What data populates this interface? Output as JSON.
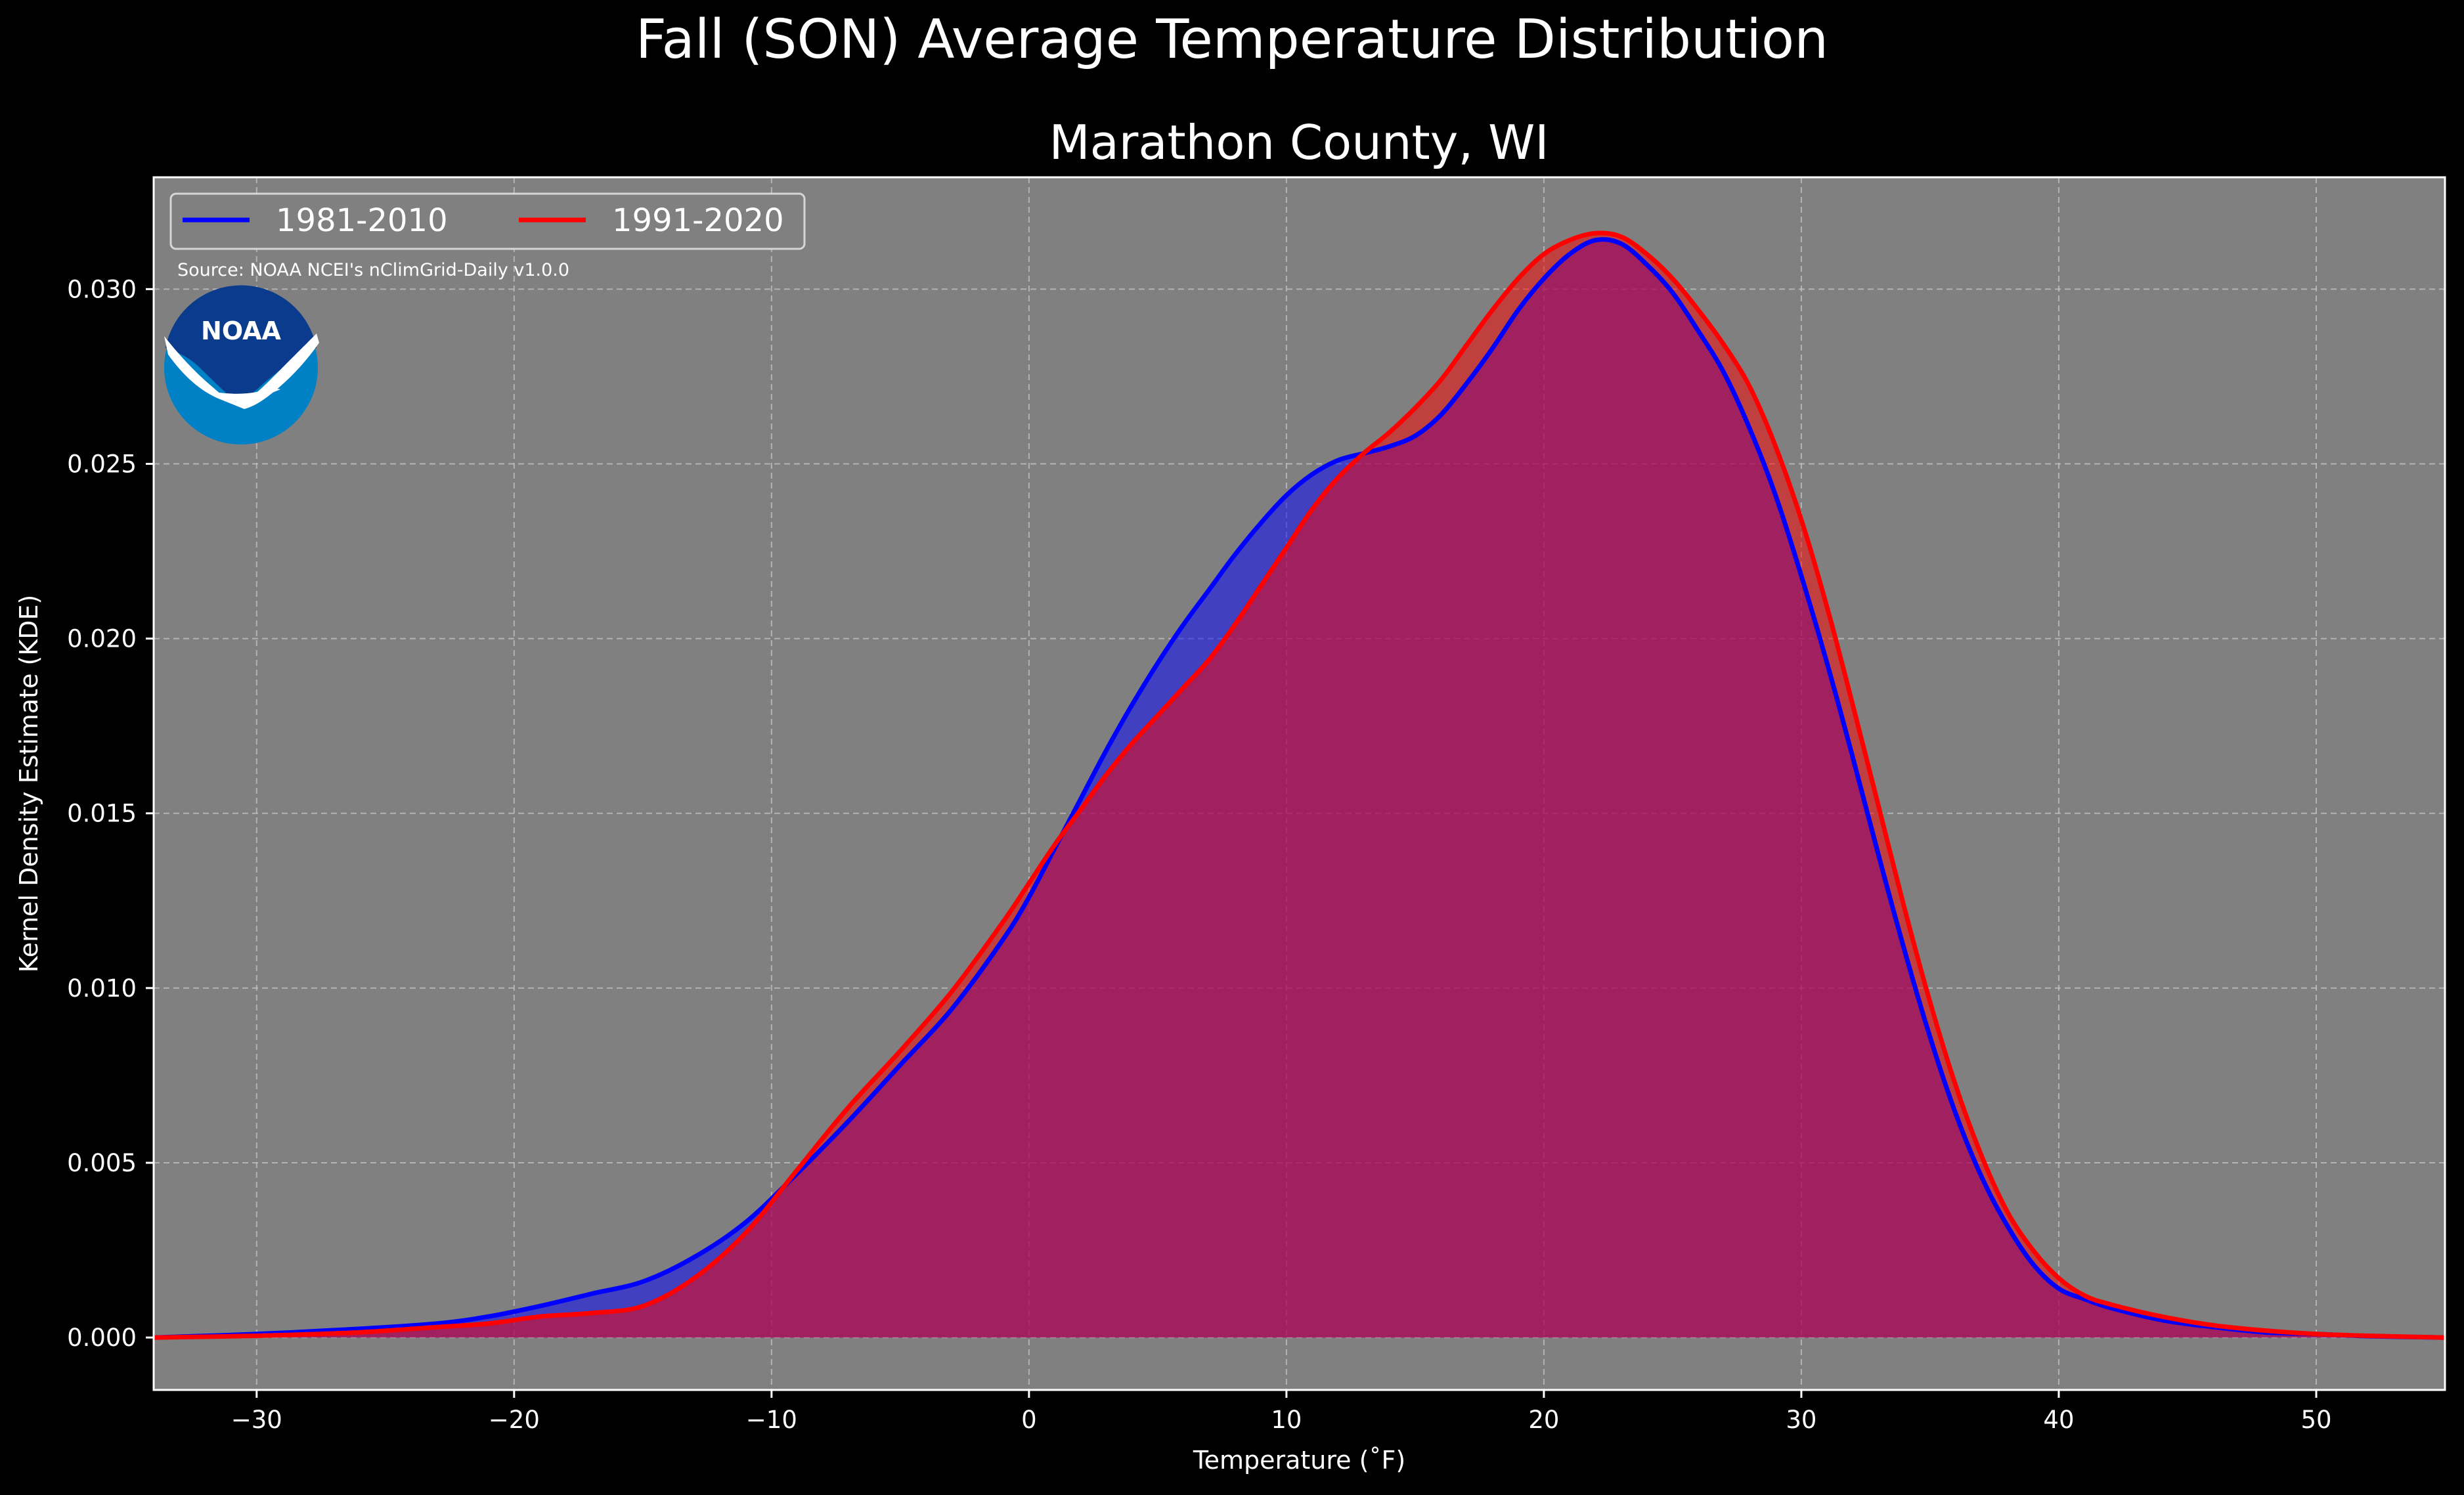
{
  "chart_data": {
    "type": "area",
    "title": "Fall (SON) Average Temperature Distribution",
    "subtitle": "Marathon County, WI",
    "xlabel": "Temperature (˚F)",
    "ylabel": "Kernel Density Estimate (KDE)",
    "xlim": [
      -34,
      55
    ],
    "ylim": [
      -0.0015,
      0.0332
    ],
    "xticks": [
      -30,
      -20,
      -10,
      0,
      10,
      20,
      30,
      40,
      50
    ],
    "xtick_labels": [
      "−30",
      "−20",
      "−10",
      "0",
      "10",
      "20",
      "30",
      "40",
      "50"
    ],
    "yticks": [
      0.0,
      0.005,
      0.01,
      0.015,
      0.02,
      0.025,
      0.03
    ],
    "ytick_labels": [
      "0.000",
      "0.005",
      "0.010",
      "0.015",
      "0.020",
      "0.025",
      "0.030"
    ],
    "grid": true,
    "legend_position": "top-left",
    "annotation": "Source: NOAA NCEI's nClimGrid-Daily v1.0.0",
    "logo": {
      "text": "NOAA",
      "outer_color": "#0081c6",
      "inner_color": "#0a3b8c"
    },
    "colors": {
      "figure_bg": "#000000",
      "axes_bg": "#808080"
    },
    "series": [
      {
        "name": "1981-2010",
        "color": "#0000ff",
        "fill": "#0000ff",
        "x": [
          -34,
          -30,
          -26,
          -23,
          -21,
          -19,
          -17,
          -15,
          -13,
          -11,
          -9,
          -7,
          -5,
          -3,
          -1,
          0,
          1,
          2,
          3,
          4,
          5,
          6,
          7,
          8,
          9,
          10,
          11,
          12,
          13,
          14,
          15,
          16,
          17,
          18,
          19,
          20,
          21,
          22,
          23,
          24,
          25,
          26,
          27,
          28,
          29,
          30,
          31,
          32,
          33,
          34,
          35,
          36,
          37,
          38,
          39,
          40,
          41,
          42,
          44,
          46,
          48,
          50,
          52,
          55
        ],
        "y": [
          0.0,
          0.0001,
          0.00025,
          0.0004,
          0.0006,
          0.0009,
          0.00125,
          0.0016,
          0.0023,
          0.0033,
          0.0047,
          0.0062,
          0.0078,
          0.0094,
          0.0114,
          0.0126,
          0.014,
          0.0154,
          0.0168,
          0.0181,
          0.0193,
          0.0204,
          0.0214,
          0.0224,
          0.0233,
          0.0241,
          0.0247,
          0.0251,
          0.0253,
          0.0255,
          0.0258,
          0.0264,
          0.0273,
          0.0283,
          0.0294,
          0.0303,
          0.031,
          0.0314,
          0.0313,
          0.0307,
          0.0299,
          0.0288,
          0.0276,
          0.026,
          0.0241,
          0.0218,
          0.0193,
          0.0166,
          0.0138,
          0.0111,
          0.0086,
          0.0064,
          0.0046,
          0.0032,
          0.0021,
          0.0014,
          0.0011,
          0.00085,
          0.0005,
          0.0003,
          0.00015,
          0.0001,
          4e-05,
          0.0
        ]
      },
      {
        "name": "1991-2020",
        "color": "#ff0000",
        "fill": "#ff0000",
        "x": [
          -34,
          -30,
          -26,
          -23,
          -21,
          -19,
          -17,
          -15,
          -13,
          -11,
          -9,
          -7,
          -5,
          -3,
          -1,
          0,
          1,
          2,
          3,
          4,
          5,
          6,
          7,
          8,
          9,
          10,
          11,
          12,
          13,
          14,
          15,
          16,
          17,
          18,
          19,
          20,
          21,
          22,
          23,
          24,
          25,
          26,
          27,
          28,
          29,
          30,
          31,
          32,
          33,
          34,
          35,
          36,
          37,
          38,
          39,
          40,
          41,
          42,
          44,
          46,
          48,
          50,
          52,
          55
        ],
        "y": [
          0.0,
          5e-05,
          0.00015,
          0.0003,
          0.0004,
          0.0006,
          0.0007,
          0.0009,
          0.0017,
          0.003,
          0.0048,
          0.0066,
          0.0082,
          0.0099,
          0.0119,
          0.013,
          0.0141,
          0.0151,
          0.0161,
          0.017,
          0.0178,
          0.0186,
          0.0194,
          0.0204,
          0.0215,
          0.0226,
          0.0237,
          0.0246,
          0.0253,
          0.0259,
          0.0266,
          0.0274,
          0.0284,
          0.0294,
          0.0303,
          0.031,
          0.0314,
          0.0316,
          0.0315,
          0.031,
          0.0303,
          0.0294,
          0.0284,
          0.0272,
          0.0255,
          0.0234,
          0.0209,
          0.0181,
          0.0152,
          0.0123,
          0.0096,
          0.0072,
          0.0052,
          0.0036,
          0.0025,
          0.0017,
          0.0012,
          0.00095,
          0.0006,
          0.00035,
          0.0002,
          0.0001,
          5e-05,
          0.0
        ]
      }
    ]
  }
}
